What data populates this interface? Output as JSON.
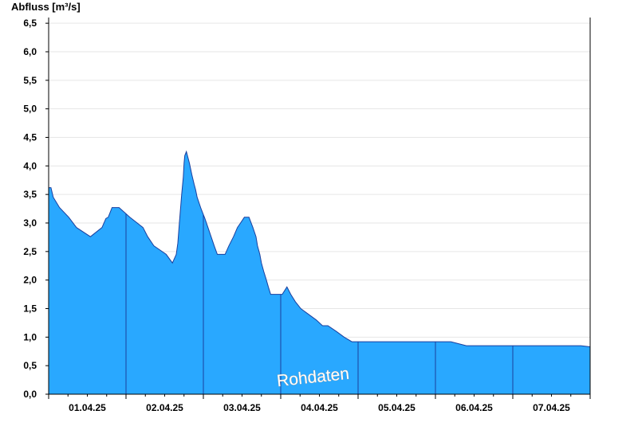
{
  "chart_data": {
    "type": "area",
    "ylabel": "Abfluss [m³/s]",
    "watermark": "Rohdaten",
    "ylim": [
      0,
      6.6
    ],
    "yticks": [
      {
        "value": 0.0,
        "label": "0,0"
      },
      {
        "value": 0.5,
        "label": "0,5"
      },
      {
        "value": 1.0,
        "label": "1,0"
      },
      {
        "value": 1.5,
        "label": "1,5"
      },
      {
        "value": 2.0,
        "label": "2,0"
      },
      {
        "value": 2.5,
        "label": "2,5"
      },
      {
        "value": 3.0,
        "label": "3,0"
      },
      {
        "value": 3.5,
        "label": "3,5"
      },
      {
        "value": 4.0,
        "label": "4,0"
      },
      {
        "value": 4.5,
        "label": "4,5"
      },
      {
        "value": 5.0,
        "label": "5,0"
      },
      {
        "value": 5.5,
        "label": "5,5"
      },
      {
        "value": 6.0,
        "label": "6,0"
      },
      {
        "value": 6.5,
        "label": "6,5"
      }
    ],
    "xticks": [
      {
        "value": 0.5,
        "label": "01.04.25"
      },
      {
        "value": 1.5,
        "label": "02.04.25"
      },
      {
        "value": 2.5,
        "label": "03.04.25"
      },
      {
        "value": 3.5,
        "label": "04.04.25"
      },
      {
        "value": 4.5,
        "label": "05.04.25"
      },
      {
        "value": 5.5,
        "label": "06.04.25"
      },
      {
        "value": 6.5,
        "label": "07.04.25"
      }
    ],
    "day_boundaries": [
      1,
      2,
      3,
      4,
      5,
      6
    ],
    "xlim": [
      0,
      7
    ],
    "grid": true,
    "fill_color": "#29a8ff",
    "line_color": "#1a3f9e",
    "series": [
      {
        "x": [
          0.0,
          0.03,
          0.06,
          0.14,
          0.26,
          0.36,
          0.54,
          0.69,
          0.74,
          0.77,
          0.82,
          0.84,
          0.88,
          0.91,
          1.05,
          1.22,
          1.28,
          1.36,
          1.52,
          1.6,
          1.65,
          1.67,
          1.69,
          1.72,
          1.74,
          1.75,
          1.76,
          1.78,
          1.82,
          1.85,
          1.88,
          1.9,
          1.92,
          1.97,
          2.02,
          2.06,
          2.1,
          2.14,
          2.18,
          2.23,
          2.28,
          2.33,
          2.39,
          2.44,
          2.48,
          2.53,
          2.59,
          2.64,
          2.68,
          2.7,
          2.73,
          2.75,
          2.78,
          2.81,
          2.84,
          2.87,
          2.9,
          2.96,
          3.02,
          3.08,
          3.13,
          3.19,
          3.26,
          3.36,
          3.46,
          3.54,
          3.61,
          3.72,
          3.82,
          3.92,
          3.96,
          3.98,
          4.02,
          4.1,
          4.28,
          4.46,
          4.64,
          4.83,
          5.01,
          5.2,
          5.4,
          5.62,
          5.87,
          6.14,
          6.46,
          6.72,
          6.88,
          7.0
        ],
        "y": [
          3.62,
          3.62,
          3.45,
          3.27,
          3.1,
          2.92,
          2.76,
          2.92,
          3.08,
          3.1,
          3.27,
          3.27,
          3.27,
          3.27,
          3.1,
          2.92,
          2.76,
          2.6,
          2.45,
          2.3,
          2.45,
          2.65,
          3.0,
          3.5,
          3.8,
          4.05,
          4.18,
          4.25,
          4.05,
          3.85,
          3.68,
          3.58,
          3.45,
          3.25,
          3.08,
          2.92,
          2.76,
          2.6,
          2.45,
          2.45,
          2.45,
          2.6,
          2.76,
          2.92,
          3.0,
          3.1,
          3.1,
          2.92,
          2.76,
          2.6,
          2.45,
          2.3,
          2.15,
          2.02,
          1.88,
          1.75,
          1.75,
          1.75,
          1.75,
          1.88,
          1.75,
          1.62,
          1.5,
          1.4,
          1.3,
          1.2,
          1.2,
          1.1,
          1.0,
          0.92,
          0.92,
          0.92,
          0.92,
          0.92,
          0.92,
          0.92,
          0.92,
          0.92,
          0.92,
          0.92,
          0.85,
          0.85,
          0.85,
          0.85,
          0.85,
          0.85,
          0.85,
          0.83
        ]
      }
    ]
  }
}
